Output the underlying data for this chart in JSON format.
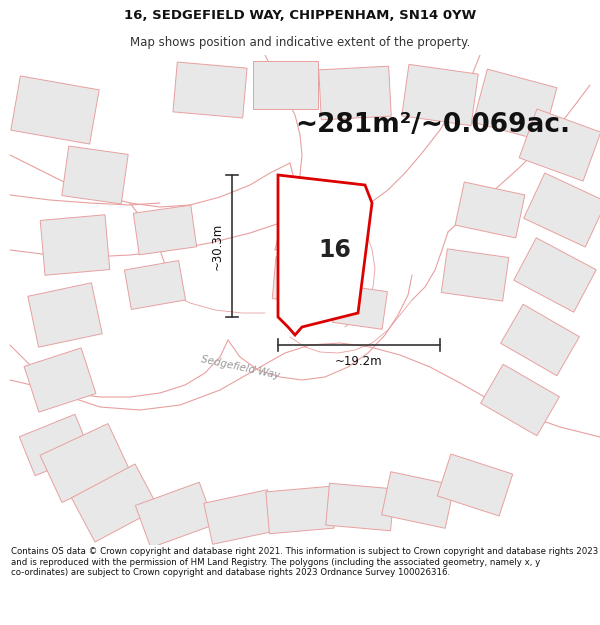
{
  "title": "16, SEDGEFIELD WAY, CHIPPENHAM, SN14 0YW",
  "subtitle": "Map shows position and indicative extent of the property.",
  "area_text": "~281m²/~0.069ac.",
  "dim_vertical": "~30.3m",
  "dim_horizontal": "~19.2m",
  "number_label": "16",
  "road_label": "Sedgefield Way",
  "footer": "Contains OS data © Crown copyright and database right 2021. This information is subject to Crown copyright and database rights 2023 and is reproduced with the permission of HM Land Registry. The polygons (including the associated geometry, namely x, y co-ordinates) are subject to Crown copyright and database rights 2023 Ordnance Survey 100026316.",
  "bg_color": "#ffffff",
  "map_bg": "#ffffff",
  "plot_outline_color": "#dd0000",
  "building_fill": "#e8e8e8",
  "building_edge": "#e8a0a0",
  "road_line_color": "#e8a0a0",
  "title_fontsize": 9.5,
  "subtitle_fontsize": 8.5,
  "area_fontsize": 19,
  "label_fontsize": 17,
  "dim_fontsize": 8.5,
  "footer_fontsize": 6.2
}
